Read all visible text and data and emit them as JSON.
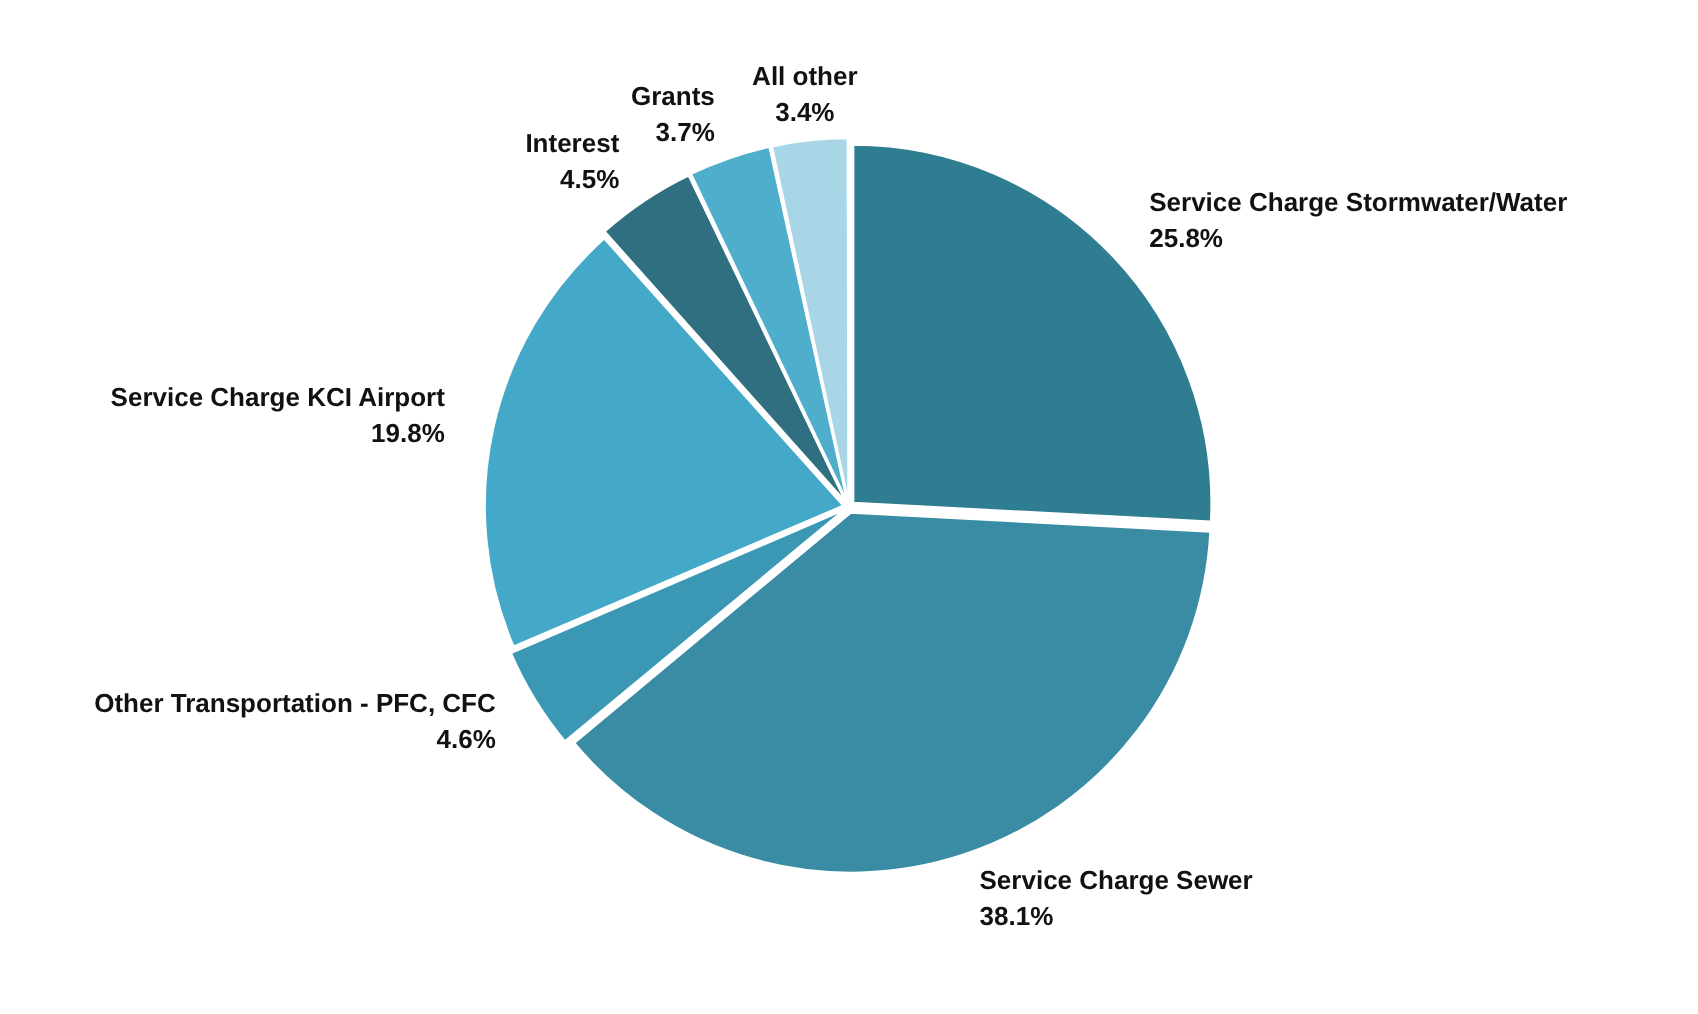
{
  "chart_data": {
    "type": "pie",
    "categories": [
      "Service Charge Stormwater/Water",
      "Service Charge Sewer",
      "Other Transportation - PFC, CFC",
      "Service Charge KCI Airport",
      "Interest",
      "Grants",
      "All other"
    ],
    "values": [
      25.8,
      38.1,
      4.6,
      19.8,
      4.5,
      3.7,
      3.4
    ],
    "colors": [
      "#2e7d90",
      "#3a8ca4",
      "#3b98b4",
      "#44a9c8",
      "#2f6f80",
      "#4eaecb",
      "#a9d6e6"
    ],
    "value_labels": [
      "25.8%",
      "38.1%",
      "4.6%",
      "19.8%",
      "4.5%",
      "3.7%",
      "3.4%"
    ],
    "legend": false
  }
}
